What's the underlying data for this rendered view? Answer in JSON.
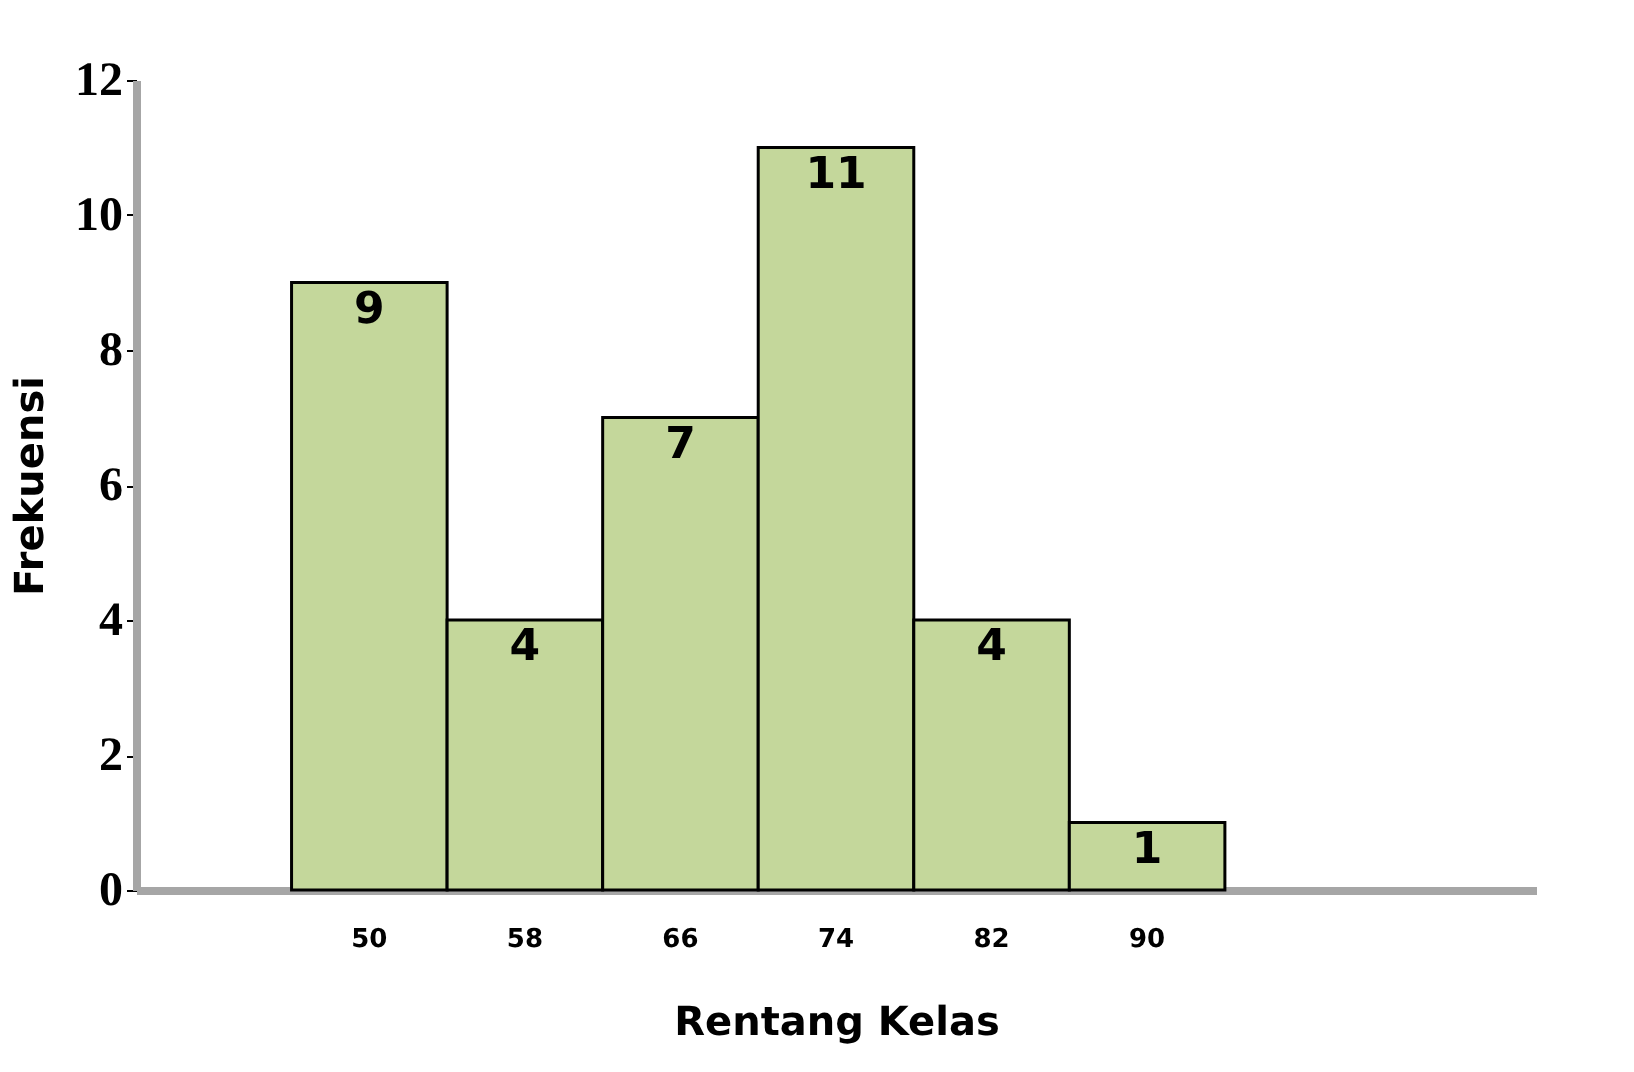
{
  "chart_data": {
    "type": "bar",
    "xlabel": "Rentang Kelas",
    "ylabel": "Frekuensi",
    "categories": [
      null,
      "50",
      "58",
      "66",
      "74",
      "82",
      "90",
      null,
      null
    ],
    "values": [
      null,
      9,
      4,
      7,
      11,
      4,
      1,
      null,
      null
    ],
    "color": "#c4d79b",
    "ylim": [
      0,
      12
    ],
    "yticks": [
      0,
      2,
      4,
      6,
      8,
      10,
      12
    ],
    "grid": false,
    "data_labels": true
  }
}
